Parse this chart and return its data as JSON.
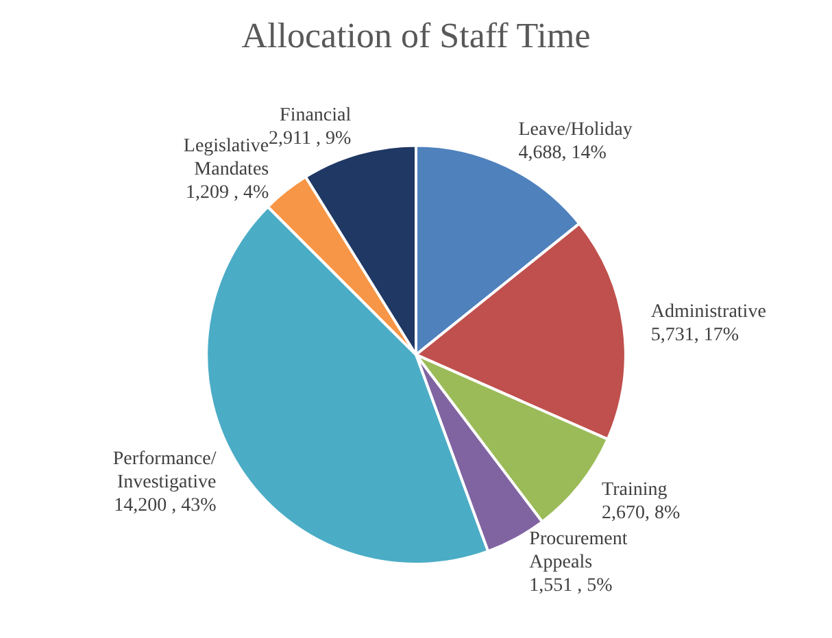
{
  "chart_data": {
    "type": "pie",
    "title": "Allocation of Staff Time",
    "categories": [
      "Leave/Holiday",
      "Administrative",
      "Training",
      "Procurement Appeals",
      "Performance/ Investigative",
      "Legislative Mandates",
      "Financial"
    ],
    "values": [
      4688,
      5731,
      2670,
      1551,
      14200,
      1209,
      2911
    ],
    "value_labels": [
      "4,688, 14%",
      "5,731, 17%",
      "2,670, 8%",
      "1,551 , 5%",
      "14,200 , 43%",
      "1,209 , 4%",
      "2,911 , 9%"
    ],
    "colors": [
      "#4f81bd",
      "#c0504d",
      "#9bbb59",
      "#8064a2",
      "#4bacc6",
      "#f79646",
      "#1f3864"
    ],
    "legend": false
  }
}
